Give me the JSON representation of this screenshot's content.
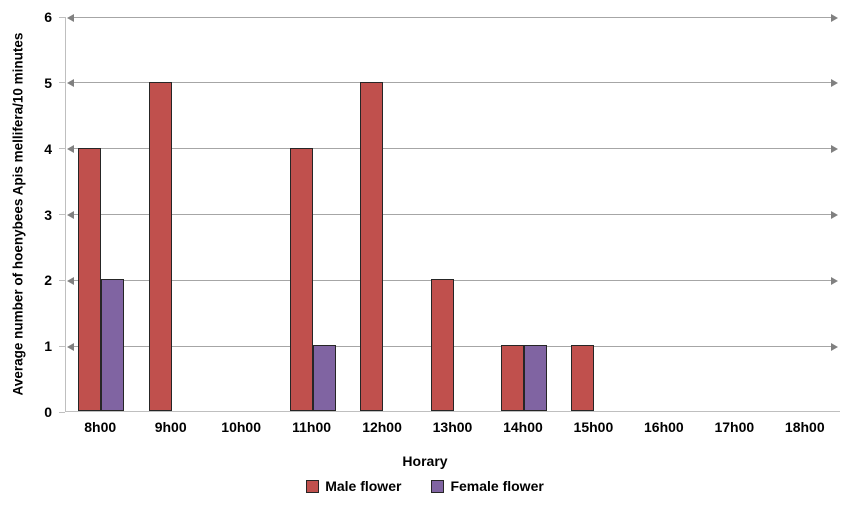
{
  "chart_data": {
    "type": "bar",
    "title": "",
    "categories": [
      "8h00",
      "9h00",
      "10h00",
      "11h00",
      "12h00",
      "13h00",
      "14h00",
      "15h00",
      "16h00",
      "17h00",
      "18h00"
    ],
    "series": [
      {
        "name": "Male flower",
        "color": "#C0504D",
        "border_color": "#262626",
        "values": [
          4,
          5,
          0,
          4,
          5,
          2,
          1,
          1,
          0,
          0,
          0
        ]
      },
      {
        "name": "Female flower",
        "color": "#8064A2",
        "border_color": "#262626",
        "values": [
          2,
          0,
          0,
          1,
          0,
          0,
          1,
          0,
          0,
          0,
          0
        ]
      }
    ],
    "xlabel": "Horary",
    "ylabel": "Average number of hoenybees Apis mellifera/10 minutes",
    "ylim": [
      0,
      6
    ],
    "yticks": [
      0,
      1,
      2,
      3,
      4,
      5,
      6
    ],
    "grid": "horizontal",
    "gridline_style": "arrowheads-both-ends",
    "legend_position": "bottom"
  },
  "colors": {
    "background": "#FFFFFF",
    "gridline": "#A6A6A6",
    "arrowhead": "#808080",
    "axis_line": "#BFBFBF",
    "text": "#000000"
  }
}
